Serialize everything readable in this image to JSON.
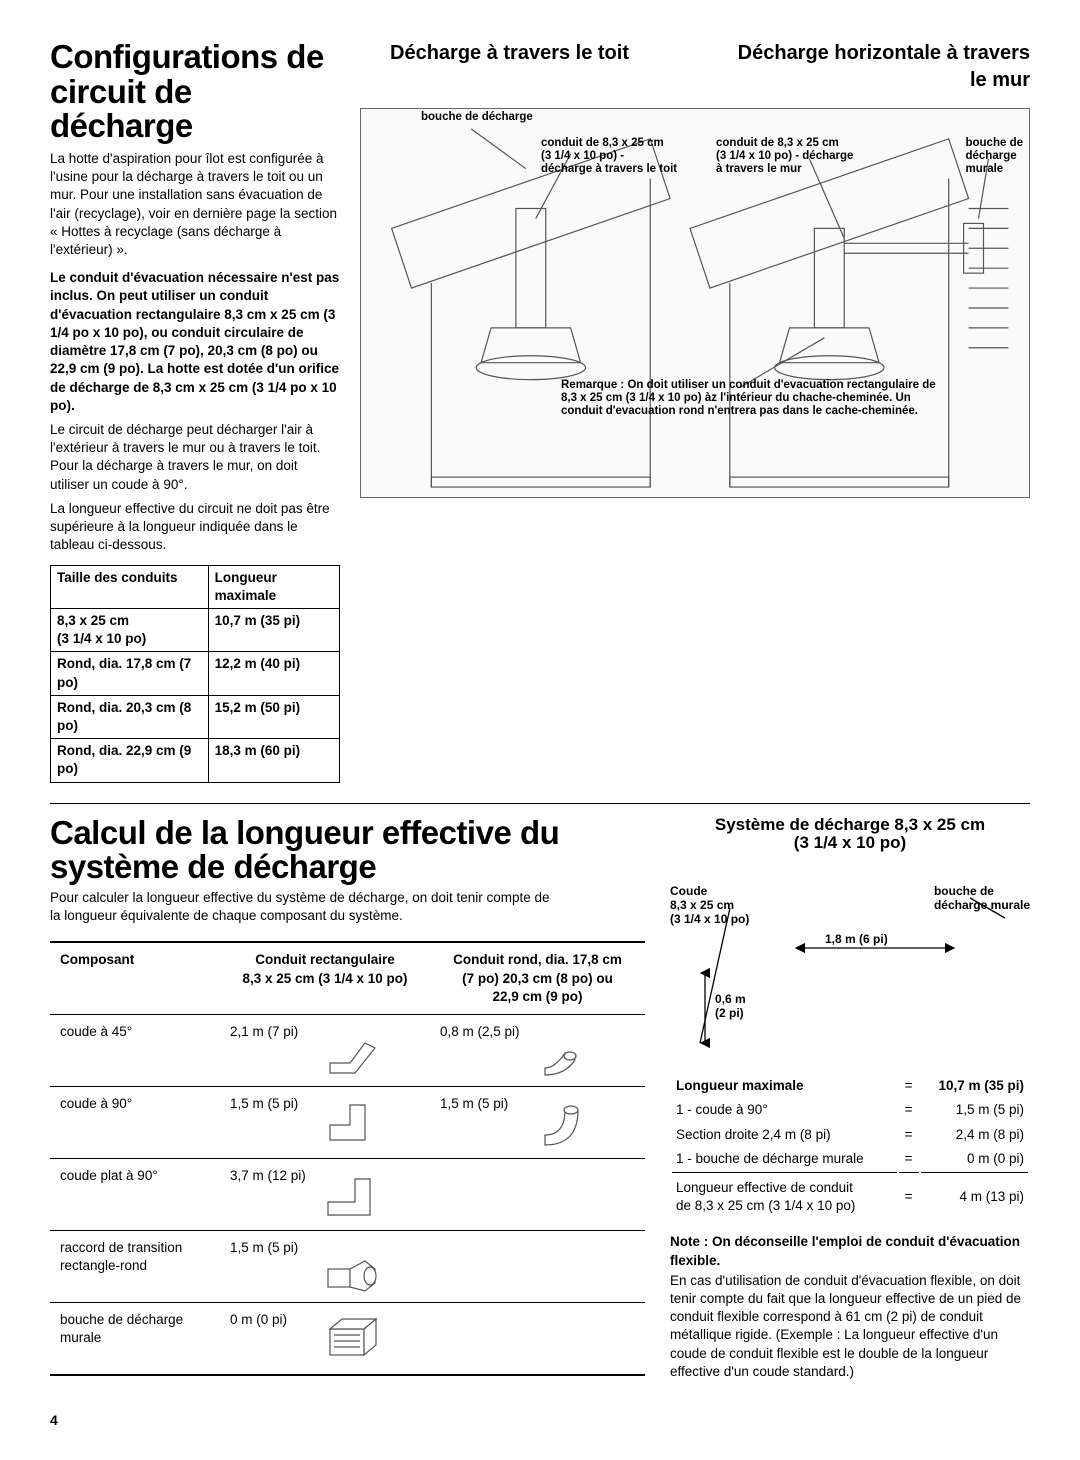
{
  "section1": {
    "title": "Configurations de circuit de décharge",
    "intro": "La hotte d'aspiration pour îlot est configurée à l'usine pour la décharge à travers le toit ou un mur. Pour une installation sans évacuation de l'air (recyclage), voir en dernière page la section « Hottes à recyclage (sans décharge à l'extérieur) ».",
    "bold_para": "Le conduit d'évacuation nécessaire n'est pas inclus. On peut utiliser un conduit d'évacuation rectangulaire 8,3 cm x 25 cm (3 1/4 po x 10 po), ou conduit circulaire de diamètre 17,8 cm (7 po), 20,3 cm (8 po) ou 22,9 cm (9 po). La hotte est dotée d'un orifice de décharge de 8,3 cm x 25 cm (3 1/4 po x 10 po).",
    "para2": "Le circuit de décharge peut décharger l'air à l'extérieur à travers le mur ou à travers le toit. Pour la décharge à travers le mur, on doit utiliser un coude à 90°.",
    "para3": "La longueur effective du circuit ne doit pas être supérieure à la longueur indiquée dans le tableau ci-dessous.",
    "table": {
      "headers": [
        "Taille des conduits",
        "Longueur maximale"
      ],
      "rows": [
        [
          "8,3 x 25 cm\n(3 1/4 x 10 po)",
          "10,7 m (35 pi)"
        ],
        [
          "Rond, dia. 17,8 cm (7 po)",
          "12,2 m (40 pi)"
        ],
        [
          "Rond, dia. 20,3 cm (8 po)",
          "15,2 m (50 pi)"
        ],
        [
          "Rond, dia. 22,9 cm (9 po)",
          "18,3 m (60 pi)"
        ]
      ]
    },
    "diagram": {
      "header_left": "Décharge à travers le toit",
      "header_right": "Décharge horizontale à travers le mur",
      "labels": {
        "bouche": "bouche de décharge",
        "conduit_roof": "conduit de 8,3 x 25 cm\n(3 1/4 x 10 po) -\ndécharge à travers le toit",
        "conduit_wall": "conduit de 8,3 x 25 cm\n(3 1/4 x 10 po) - décharge\nà travers le mur",
        "bouche_murale": "bouche de\ndécharge\nmurale",
        "remarque": "Remarque : On doit utiliser un conduit d'evacuation rectangulaire de 8,3 x 25 cm (3 1/4 x 10 po) àz l'intérieur du chache-cheminée. Un conduit d'evacuation rond n'entrera pas dans le cache-cheminée."
      }
    }
  },
  "section2": {
    "title": "Calcul de la longueur effective du système de décharge",
    "intro": "Pour calculer la longueur effective du système de décharge, on doit tenir compte de la longueur équivalente de chaque composant du système.",
    "table": {
      "headers": [
        "Composant",
        "Conduit rectangulaire\n8,3 x 25 cm (3 1/4 x 10 po)",
        "Conduit rond, dia. 17,8 cm\n(7 po) 20,3 cm (8 po) ou\n22,9 cm (9 po)"
      ],
      "rows": [
        {
          "name": "coude à 45°",
          "rect": "2,1 m (7 pi)",
          "round": "0,8 m (2,5 pi)",
          "rect_shape": "rect45",
          "round_shape": "round45"
        },
        {
          "name": "coude à 90°",
          "rect": "1,5 m (5 pi)",
          "round": "1,5 m (5 pi)",
          "rect_shape": "rect90",
          "round_shape": "round90"
        },
        {
          "name": "coude plat à 90°",
          "rect": "3,7 m (12 pi)",
          "round": "",
          "rect_shape": "flat90",
          "round_shape": ""
        },
        {
          "name": "raccord de transition rectangle-rond",
          "rect": "1,5 m (5 pi)",
          "round": "",
          "rect_shape": "transition",
          "round_shape": ""
        },
        {
          "name": "bouche de décharge murale",
          "rect": "0 m (0 pi)",
          "round": "",
          "rect_shape": "wallcap",
          "round_shape": ""
        }
      ]
    }
  },
  "section3": {
    "title": "Système de décharge 8,3 x 25 cm\n(3 1/4 x 10 po)",
    "labels": {
      "coude": "Coude\n8,3 x 25 cm\n(3 1/4 x 10 po)",
      "bouche": "bouche de\ndécharge murale",
      "horiz": "1,8 m (6 pi)",
      "vert": "0,6 m\n(2 pi)"
    },
    "calc": {
      "rows": [
        {
          "label": "Longueur maximale",
          "val": "10,7 m (35 pi)",
          "bold": true
        },
        {
          "label": "1 - coude à 90°",
          "val": "1,5 m (5 pi)"
        },
        {
          "label": "Section droite 2,4 m (8 pi)",
          "val": "2,4 m (8 pi)"
        },
        {
          "label": "1 - bouche de décharge murale",
          "val": "0 m (0 pi)"
        }
      ],
      "result": {
        "label": "Longueur effective de conduit\nde 8,3 x 25 cm (3 1/4 x 10 po)",
        "val": "4 m (13 pi)"
      }
    },
    "note_bold": "Note : On déconseille l'emploi de conduit d'évacuation flexible.",
    "note_body": "En cas d'utilisation de conduit d'évacuation flexible, on doit tenir compte du fait que la longueur effective de un pied de conduit flexible correspond à 61 cm (2 pi) de conduit métallique rigide. (Exemple : La longueur effective d'un coude de conduit flexible est le double de la longueur effective d'un coude standard.)"
  },
  "page_number": "4",
  "colors": {
    "text": "#000000",
    "border": "#000000",
    "bg": "#ffffff",
    "diagram_line": "#555555"
  }
}
